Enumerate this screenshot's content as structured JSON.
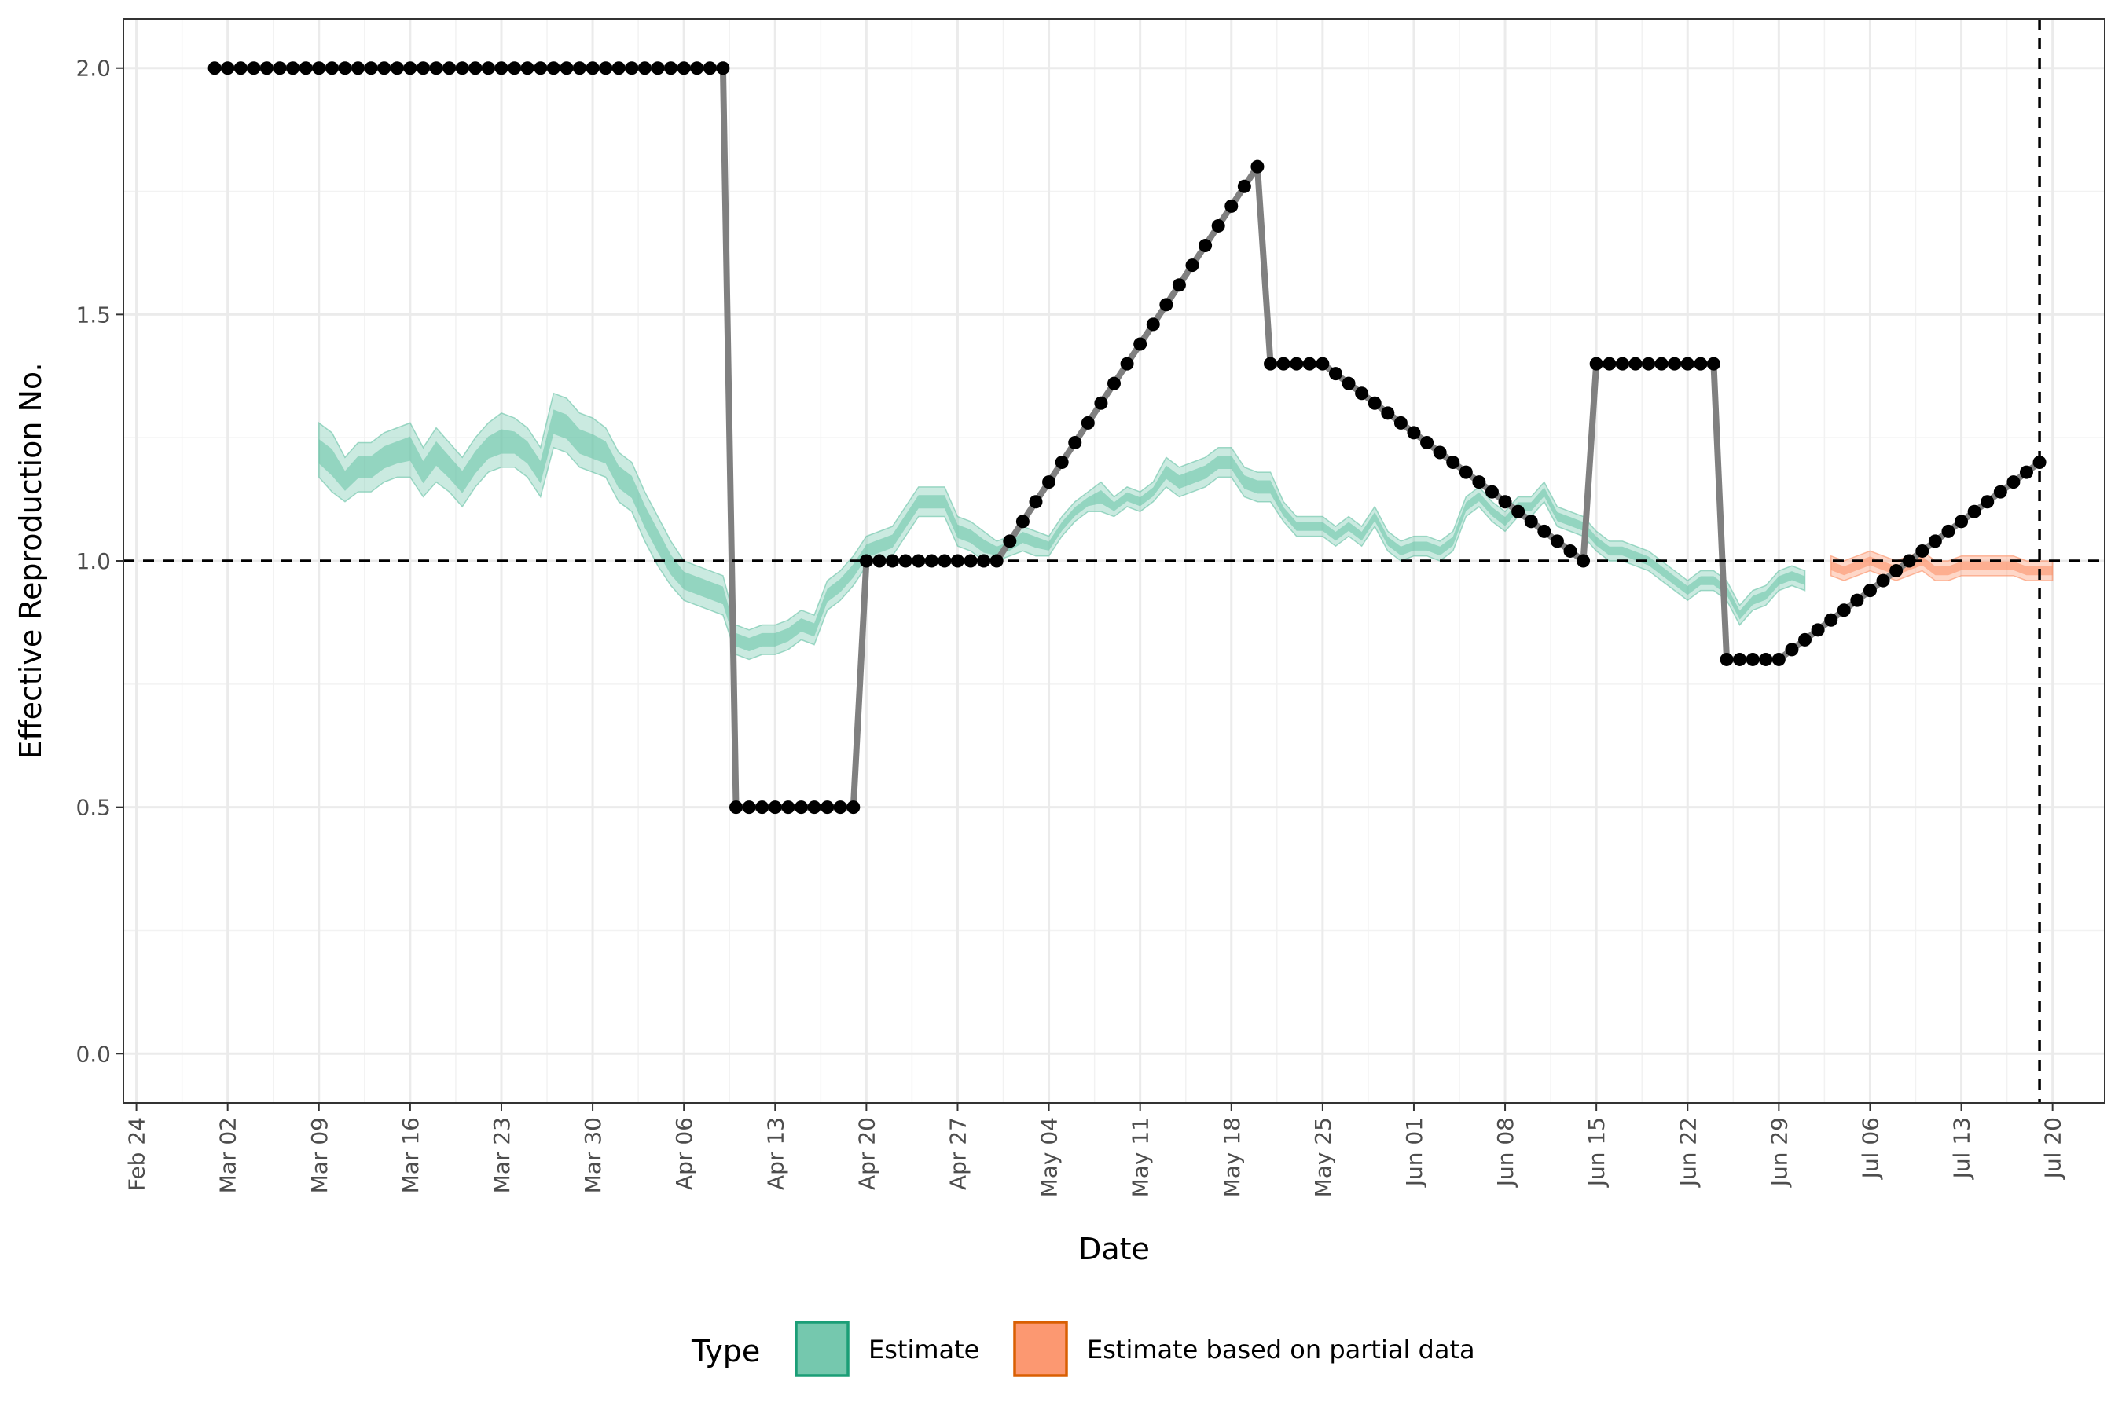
{
  "chart_data": {
    "type": "line",
    "xlabel": "Date",
    "ylabel": "Effective Reproduction No.",
    "xlim": [
      "2020-02-23",
      "2020-07-24"
    ],
    "ylim": [
      -0.1,
      2.1
    ],
    "grid": true,
    "reference_lines": {
      "y": 1.0,
      "x": "2020-07-19"
    },
    "x_ticks": [
      "2020-02-24",
      "2020-03-02",
      "2020-03-09",
      "2020-03-16",
      "2020-03-23",
      "2020-03-30",
      "2020-04-06",
      "2020-04-13",
      "2020-04-20",
      "2020-04-27",
      "2020-05-04",
      "2020-05-11",
      "2020-05-18",
      "2020-05-25",
      "2020-06-01",
      "2020-06-08",
      "2020-06-15",
      "2020-06-22",
      "2020-06-29",
      "2020-07-06",
      "2020-07-13",
      "2020-07-20"
    ],
    "x_tick_labels": [
      "Feb 24",
      "Mar 02",
      "Mar 09",
      "Mar 16",
      "Mar 23",
      "Mar 30",
      "Apr 06",
      "Apr 13",
      "Apr 20",
      "Apr 27",
      "May 04",
      "May 11",
      "May 18",
      "May 25",
      "Jun 01",
      "Jun 08",
      "Jun 15",
      "Jun 22",
      "Jun 29",
      "Jul 06",
      "Jul 13",
      "Jul 20"
    ],
    "y_ticks": [
      0.0,
      0.5,
      1.0,
      1.5,
      2.0
    ],
    "y_tick_labels": [
      "0.0",
      "0.5",
      "1.0",
      "1.5",
      "2.0"
    ],
    "legend": {
      "title": "Type",
      "position": "bottom",
      "entries": [
        {
          "label": "Estimate",
          "fill": "#66c2a5",
          "border": "#1b9e77"
        },
        {
          "label": "Estimate based on partial data",
          "fill": "#fc8d62",
          "border": "#d95f02"
        }
      ]
    },
    "truth": {
      "color_line": "#808080",
      "color_point": "#000000",
      "start": "2020-03-01",
      "values": [
        2,
        2,
        2,
        2,
        2,
        2,
        2,
        2,
        2,
        2,
        2,
        2,
        2,
        2,
        2,
        2,
        2,
        2,
        2,
        2,
        2,
        2,
        2,
        2,
        2,
        2,
        2,
        2,
        2,
        2,
        2,
        2,
        2,
        2,
        2,
        2,
        2,
        2,
        2,
        2,
        0.5,
        0.5,
        0.5,
        0.5,
        0.5,
        0.5,
        0.5,
        0.5,
        0.5,
        0.5,
        1,
        1,
        1,
        1,
        1,
        1,
        1,
        1,
        1,
        1,
        1,
        1.04,
        1.08,
        1.12,
        1.16,
        1.2,
        1.24,
        1.28,
        1.32,
        1.36,
        1.4,
        1.44,
        1.48,
        1.52,
        1.56,
        1.6,
        1.64,
        1.68,
        1.72,
        1.76,
        1.8,
        1.4,
        1.4,
        1.4,
        1.4,
        1.4,
        1.38,
        1.36,
        1.34,
        1.32,
        1.3,
        1.28,
        1.26,
        1.24,
        1.22,
        1.2,
        1.18,
        1.16,
        1.14,
        1.12,
        1.1,
        1.08,
        1.06,
        1.04,
        1.02,
        1.0,
        1.4,
        1.4,
        1.4,
        1.4,
        1.4,
        1.4,
        1.4,
        1.4,
        1.4,
        1.4,
        0.8,
        0.8,
        0.8,
        0.8,
        0.8,
        0.82,
        0.84,
        0.86,
        0.88,
        0.9,
        0.92,
        0.94,
        0.96,
        0.98,
        1.0,
        1.02,
        1.04,
        1.06,
        1.08,
        1.1,
        1.12,
        1.14,
        1.16,
        1.18,
        1.2
      ]
    },
    "series": [
      {
        "name": "Estimate",
        "color_fill": "#66c2a5",
        "start": "2020-03-09",
        "median": [
          1.22,
          1.2,
          1.16,
          1.19,
          1.19,
          1.21,
          1.22,
          1.23,
          1.18,
          1.22,
          1.19,
          1.16,
          1.2,
          1.23,
          1.24,
          1.24,
          1.22,
          1.18,
          1.28,
          1.27,
          1.24,
          1.23,
          1.22,
          1.17,
          1.15,
          1.09,
          1.04,
          0.99,
          0.96,
          0.95,
          0.94,
          0.93,
          0.84,
          0.83,
          0.84,
          0.84,
          0.85,
          0.87,
          0.86,
          0.93,
          0.95,
          0.98,
          1.02,
          1.03,
          1.04,
          1.08,
          1.12,
          1.12,
          1.12,
          1.06,
          1.05,
          1.03,
          1.02,
          1.03,
          1.05,
          1.04,
          1.03,
          1.07,
          1.1,
          1.12,
          1.13,
          1.11,
          1.13,
          1.12,
          1.14,
          1.18,
          1.16,
          1.17,
          1.18,
          1.2,
          1.2,
          1.16,
          1.15,
          1.15,
          1.1,
          1.07,
          1.07,
          1.07,
          1.05,
          1.07,
          1.05,
          1.09,
          1.04,
          1.02,
          1.03,
          1.03,
          1.02,
          1.04,
          1.11,
          1.13,
          1.1,
          1.08,
          1.11,
          1.11,
          1.14,
          1.09,
          1.08,
          1.07,
          1.04,
          1.02,
          1.02,
          1.01,
          1.0,
          0.98,
          0.96,
          0.94,
          0.96,
          0.96,
          0.94,
          0.89,
          0.92,
          0.93,
          0.96,
          0.97,
          0.96
        ],
        "lower": [
          1.17,
          1.14,
          1.12,
          1.14,
          1.14,
          1.16,
          1.17,
          1.17,
          1.13,
          1.16,
          1.14,
          1.11,
          1.15,
          1.18,
          1.19,
          1.19,
          1.17,
          1.13,
          1.23,
          1.22,
          1.19,
          1.18,
          1.17,
          1.12,
          1.1,
          1.04,
          0.99,
          0.95,
          0.92,
          0.91,
          0.9,
          0.89,
          0.81,
          0.8,
          0.81,
          0.81,
          0.82,
          0.84,
          0.83,
          0.9,
          0.92,
          0.95,
          0.99,
          1.0,
          1.01,
          1.05,
          1.09,
          1.09,
          1.09,
          1.03,
          1.02,
          1.0,
          1.0,
          1.01,
          1.02,
          1.01,
          1.01,
          1.05,
          1.08,
          1.1,
          1.1,
          1.09,
          1.11,
          1.1,
          1.12,
          1.15,
          1.13,
          1.14,
          1.15,
          1.17,
          1.17,
          1.13,
          1.12,
          1.12,
          1.08,
          1.05,
          1.05,
          1.05,
          1.03,
          1.05,
          1.03,
          1.07,
          1.02,
          1.0,
          1.01,
          1.01,
          1.0,
          1.02,
          1.09,
          1.11,
          1.08,
          1.06,
          1.09,
          1.09,
          1.12,
          1.07,
          1.06,
          1.05,
          1.02,
          1.0,
          1.0,
          0.99,
          0.98,
          0.96,
          0.94,
          0.92,
          0.94,
          0.94,
          0.92,
          0.87,
          0.9,
          0.91,
          0.94,
          0.95,
          0.94
        ],
        "upper": [
          1.28,
          1.26,
          1.21,
          1.24,
          1.24,
          1.26,
          1.27,
          1.28,
          1.23,
          1.27,
          1.24,
          1.21,
          1.25,
          1.28,
          1.3,
          1.29,
          1.27,
          1.23,
          1.34,
          1.33,
          1.3,
          1.29,
          1.27,
          1.22,
          1.2,
          1.14,
          1.09,
          1.04,
          1.0,
          0.99,
          0.98,
          0.97,
          0.87,
          0.86,
          0.87,
          0.87,
          0.88,
          0.9,
          0.89,
          0.96,
          0.98,
          1.01,
          1.05,
          1.06,
          1.07,
          1.11,
          1.15,
          1.15,
          1.15,
          1.09,
          1.08,
          1.06,
          1.04,
          1.05,
          1.07,
          1.06,
          1.05,
          1.09,
          1.12,
          1.14,
          1.16,
          1.13,
          1.15,
          1.14,
          1.16,
          1.21,
          1.19,
          1.2,
          1.21,
          1.23,
          1.23,
          1.19,
          1.18,
          1.18,
          1.12,
          1.09,
          1.09,
          1.09,
          1.07,
          1.09,
          1.07,
          1.11,
          1.06,
          1.04,
          1.05,
          1.05,
          1.04,
          1.06,
          1.13,
          1.15,
          1.12,
          1.1,
          1.13,
          1.13,
          1.16,
          1.11,
          1.1,
          1.09,
          1.06,
          1.04,
          1.04,
          1.03,
          1.02,
          1.0,
          0.98,
          0.96,
          0.98,
          0.98,
          0.96,
          0.91,
          0.94,
          0.95,
          0.98,
          0.99,
          0.98
        ]
      },
      {
        "name": "Estimate based on partial data",
        "color_fill": "#fc8d62",
        "start": "2020-07-03",
        "median": [
          0.99,
          0.98,
          0.99,
          1.0,
          0.99,
          0.98,
          0.99,
          1.0,
          0.98,
          0.98,
          0.99,
          0.99,
          0.99,
          0.99,
          0.99,
          0.98,
          0.98,
          0.98
        ],
        "lower": [
          0.97,
          0.96,
          0.97,
          0.98,
          0.97,
          0.96,
          0.97,
          0.98,
          0.96,
          0.96,
          0.97,
          0.97,
          0.97,
          0.97,
          0.97,
          0.96,
          0.96,
          0.96
        ],
        "upper": [
          1.01,
          1.0,
          1.01,
          1.02,
          1.01,
          1.0,
          1.01,
          1.02,
          1.0,
          1.0,
          1.01,
          1.01,
          1.01,
          1.01,
          1.01,
          1.0,
          1.0,
          1.0
        ]
      }
    ]
  }
}
